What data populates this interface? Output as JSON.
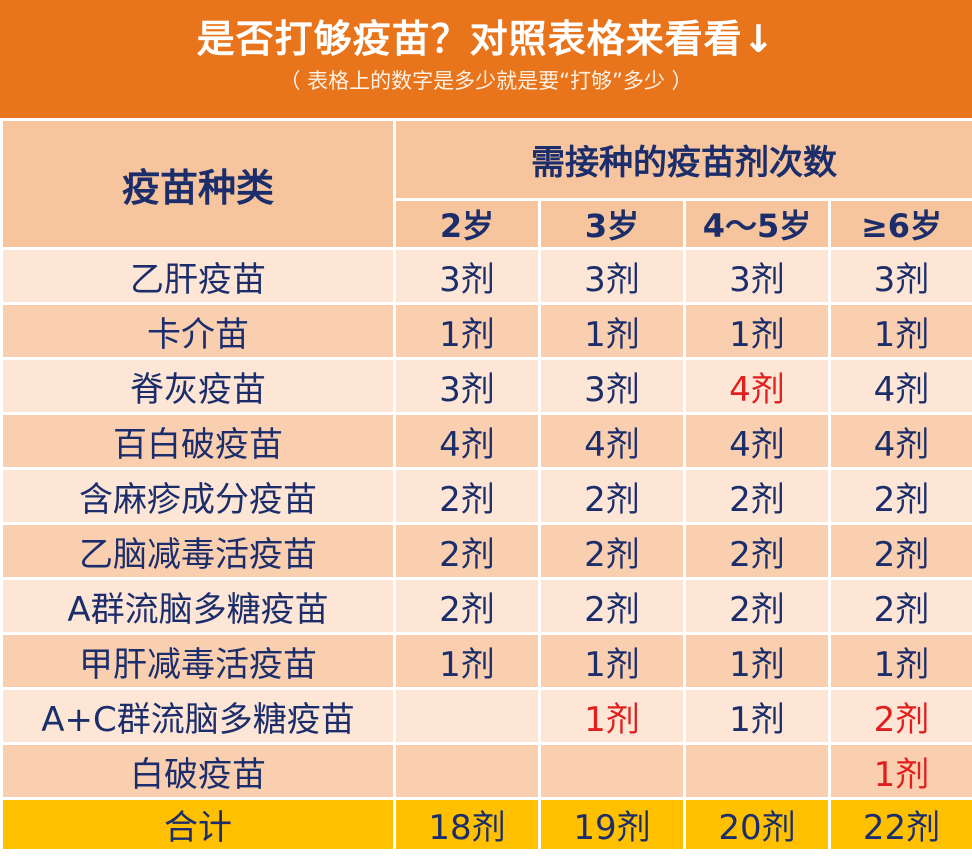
{
  "banner": {
    "title": "是否打够疫苗？对照表格来看看↓",
    "subtitle": "（ 表格上的数字是多少就是要“打够”多少 ）",
    "color": "#e8741c"
  },
  "table": {
    "kind_header": "疫苗种类",
    "doses_header": "需接种的疫苗剂次数",
    "ages": [
      "2岁",
      "3岁",
      "4～5岁",
      "≥6岁"
    ],
    "rows": [
      {
        "name": "乙肝疫苗",
        "doses": [
          "3剂",
          "3剂",
          "3剂",
          "3剂"
        ]
      },
      {
        "name": "卡介苗",
        "doses": [
          "1剂",
          "1剂",
          "1剂",
          "1剂"
        ]
      },
      {
        "name": "脊灰疫苗",
        "doses": [
          "3剂",
          "3剂",
          "4剂",
          "4剂"
        ]
      },
      {
        "name": "百白破疫苗",
        "doses": [
          "4剂",
          "4剂",
          "4剂",
          "4剂"
        ]
      },
      {
        "name": "含麻疹成分疫苗",
        "doses": [
          "2剂",
          "2剂",
          "2剂",
          "2剂"
        ]
      },
      {
        "name": "乙脑减毒活疫苗",
        "doses": [
          "2剂",
          "2剂",
          "2剂",
          "2剂"
        ]
      },
      {
        "name": "A群流脑多糖疫苗",
        "doses": [
          "2剂",
          "2剂",
          "2剂",
          "2剂"
        ]
      },
      {
        "name": "甲肝减毒活疫苗",
        "doses": [
          "1剂",
          "1剂",
          "1剂",
          "1剂"
        ]
      },
      {
        "name": "A+C群流脑多糖疫苗",
        "doses": [
          "",
          "1剂",
          "1剂",
          "2剂"
        ]
      },
      {
        "name": "白破疫苗",
        "doses": [
          "",
          "",
          "",
          "1剂"
        ]
      }
    ],
    "total": {
      "name": "合计",
      "doses": [
        "18剂",
        "19剂",
        "20剂",
        "22剂"
      ]
    },
    "highlight_color": "#e01f1f"
  }
}
